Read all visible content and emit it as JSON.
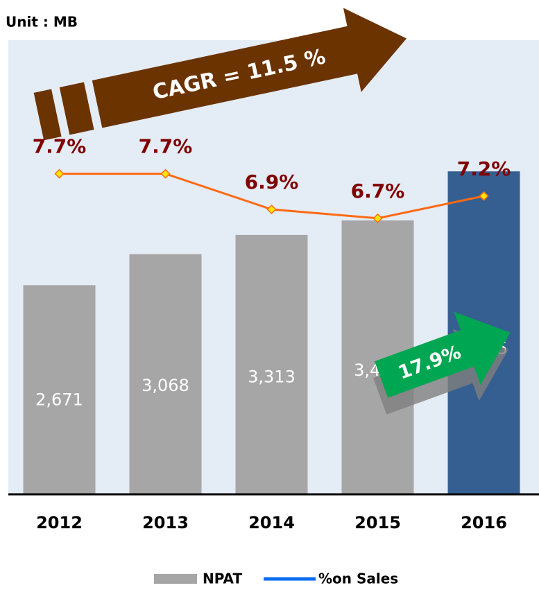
{
  "chart_data": {
    "type": "bar_line",
    "unit_label": "Unit : MB",
    "categories": [
      "2012",
      "2013",
      "2014",
      "2015",
      "2016"
    ],
    "ylim": [
      0,
      5800
    ],
    "y2lim": [
      0.5,
      10.7
    ],
    "series": [
      {
        "name": "NPAT",
        "color": "#a6a6a6",
        "bar_colors": [
          "#a6a6a6",
          "#a6a6a6",
          "#a6a6a6",
          "#a6a6a6",
          "#365f91"
        ],
        "values": [
          2671,
          3068,
          3313,
          3499,
          4125
        ],
        "value_labels": [
          "2,671",
          "3,068",
          "3,313",
          "3,499",
          "4,125"
        ]
      },
      {
        "name": "%on Sales",
        "axis": "y2",
        "color": "#ff6a13",
        "legend_color": "#0a6cf0",
        "values": [
          7.7,
          7.7,
          6.9,
          6.7,
          7.2
        ],
        "value_labels": [
          "7.7%",
          "7.7%",
          "6.9%",
          "6.7%",
          "7.2%"
        ]
      }
    ],
    "annotations": [
      "CAGR = 11.5 %",
      "17.9%"
    ]
  }
}
